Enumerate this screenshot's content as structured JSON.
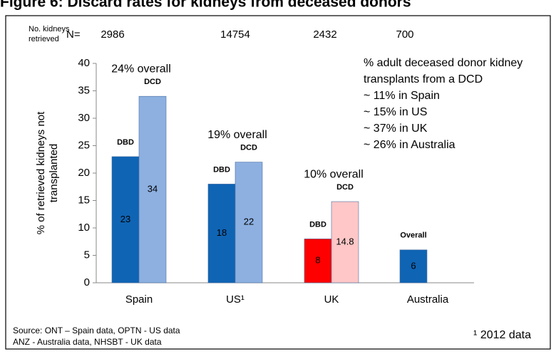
{
  "chart_data": {
    "type": "bar",
    "title": "Figure 6: Discard rates for kidneys from deceased donors",
    "y_label": [
      "% of retrieved kidneys not",
      "transplanted"
    ],
    "categories": [
      "Spain",
      "US¹",
      "UK",
      "Australia"
    ],
    "series": [
      {
        "name": "DBD",
        "values": [
          23,
          18,
          8,
          null
        ],
        "colors": [
          "#0f64b4",
          "#0f64b4",
          "#ff0000",
          null
        ]
      },
      {
        "name": "DCD",
        "values": [
          34,
          22,
          14.8,
          null
        ],
        "colors": [
          "#8db0e1",
          "#8db0e1",
          "#ffc7c7",
          null
        ]
      },
      {
        "name": "Overall",
        "values": [
          null,
          null,
          null,
          6
        ],
        "colors": [
          null,
          null,
          null,
          "#0f64b4"
        ]
      }
    ],
    "ylim": [
      0,
      40
    ],
    "yticks": [
      0,
      5,
      10,
      15,
      20,
      25,
      30,
      35,
      40
    ],
    "n_label": [
      "No. kidneys",
      "retrieved"
    ],
    "n_prefix": "N=",
    "n_values": [
      2986,
      14754,
      2432,
      700
    ],
    "overall_annotations": [
      {
        "text": "24% overall",
        "color": "#2a8cd0"
      },
      {
        "text": "19% overall",
        "color": "#2a8cd0"
      },
      {
        "text": "10% overall",
        "color": "#ff0000"
      }
    ],
    "note": [
      "% adult deceased donor kidney",
      "transplants from a DCD",
      "~ 11% in Spain",
      "~ 15% in US",
      "~ 37% in UK",
      "~ 26% in Australia"
    ],
    "note_color": "#2a8cd0",
    "source": [
      "Source: ONT – Spain data, OPTN - US data",
      "ANZ - Australia data, NHSBT - UK data"
    ],
    "footnote": "¹ 2012 data"
  }
}
